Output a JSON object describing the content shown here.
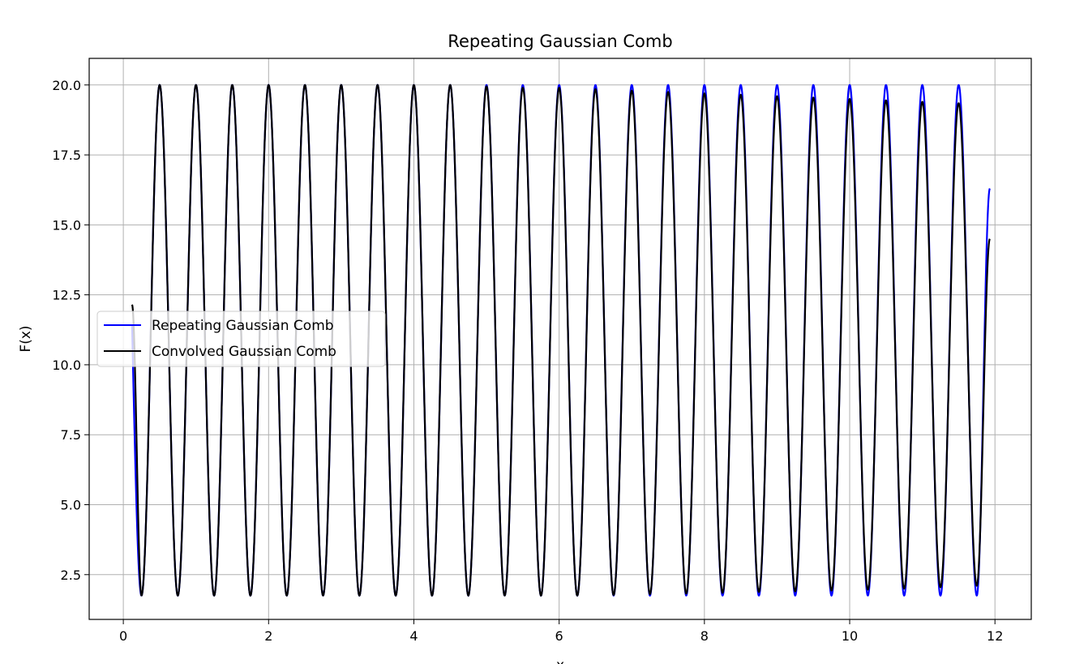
{
  "chart_data": {
    "type": "line",
    "title": "Repeating Gaussian Comb",
    "xlabel": "x",
    "ylabel": "F(x)",
    "xlim": [
      -0.47,
      12.5
    ],
    "ylim": [
      0.9,
      20.95
    ],
    "xticks": [
      0,
      2,
      4,
      6,
      8,
      10,
      12
    ],
    "xtick_labels": [
      "0",
      "2",
      "4",
      "6",
      "8",
      "10",
      "12"
    ],
    "yticks": [
      2.5,
      5.0,
      7.5,
      10.0,
      12.5,
      15.0,
      17.5,
      20.0
    ],
    "ytick_labels": [
      "2.5",
      "5.0",
      "7.5",
      "10.0",
      "12.5",
      "15.0",
      "17.5",
      "20.0"
    ],
    "grid": true,
    "legend_position": "center-left",
    "x_range": [
      0.12,
      11.93
    ],
    "period": 0.5,
    "peaks_x": [
      0.5,
      1.0,
      1.5,
      2.0,
      2.5,
      3.0,
      3.5,
      4.0,
      4.5,
      5.0,
      5.5,
      6.0,
      6.5,
      7.0,
      7.5,
      8.0,
      8.5,
      9.0,
      9.5,
      10.0,
      10.5,
      11.0,
      11.5
    ],
    "troughs_x": [
      0.25,
      0.75,
      1.25,
      1.75,
      2.25,
      2.75,
      3.25,
      3.75,
      4.25,
      4.75,
      5.25,
      5.75,
      6.25,
      6.75,
      7.25,
      7.75,
      8.25,
      8.75,
      9.25,
      9.75,
      10.25,
      10.75,
      11.25,
      11.75
    ],
    "series": [
      {
        "name": "Repeating Gaussian Comb",
        "color": "#0000ff",
        "peak_values": [
          20.0,
          20.0,
          20.0,
          20.0,
          20.0,
          20.0,
          20.0,
          20.0,
          20.0,
          20.0,
          20.0,
          20.0,
          20.0,
          20.0,
          20.0,
          20.0,
          20.0,
          20.0,
          20.0,
          20.0,
          20.0,
          20.0,
          20.0
        ],
        "trough_values": [
          1.75,
          1.75,
          1.75,
          1.75,
          1.75,
          1.75,
          1.75,
          1.75,
          1.75,
          1.75,
          1.75,
          1.75,
          1.75,
          1.75,
          1.75,
          1.75,
          1.75,
          1.75,
          1.75,
          1.75,
          1.75,
          1.75,
          1.75,
          1.75
        ],
        "end_point": [
          11.93,
          16.3
        ]
      },
      {
        "name": "Convolved Gaussian Comb",
        "color": "#000000",
        "start_point": [
          0.12,
          12.15
        ],
        "peak_values": [
          20.0,
          20.0,
          20.0,
          20.0,
          20.0,
          20.0,
          20.0,
          20.0,
          20.0,
          19.95,
          19.9,
          19.9,
          19.85,
          19.8,
          19.75,
          19.7,
          19.65,
          19.6,
          19.55,
          19.5,
          19.45,
          19.4,
          19.35
        ],
        "trough_values": [
          1.75,
          1.75,
          1.75,
          1.75,
          1.75,
          1.75,
          1.75,
          1.75,
          1.75,
          1.75,
          1.75,
          1.75,
          1.75,
          1.77,
          1.8,
          1.82,
          1.85,
          1.88,
          1.9,
          1.93,
          1.96,
          2.0,
          2.05,
          2.1
        ],
        "end_point": [
          11.93,
          14.5
        ]
      }
    ]
  }
}
